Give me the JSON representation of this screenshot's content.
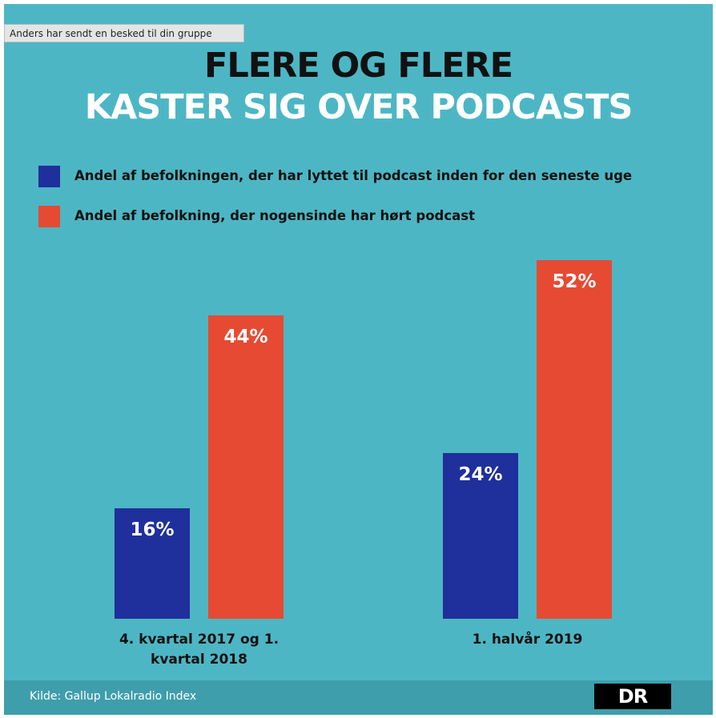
{
  "notification": "Anders har sendt en besked til din gruppe",
  "chart_data": {
    "type": "bar",
    "title": "FLERE OG FLERE",
    "subtitle": "KASTER SIG OVER PODCASTS",
    "categories": [
      "4. kvartal 2017 og 1. kvartal 2018",
      "1. halvår 2019"
    ],
    "series": [
      {
        "name": "Andel af befolkningen, der har lyttet til podcast inden for den seneste uge",
        "color": "#1f2f9c",
        "values": [
          16,
          24
        ],
        "value_labels": [
          "16%",
          "24%"
        ]
      },
      {
        "name": "Andel af befolkning, der nogensinde har hørt podcast",
        "color": "#e64a33",
        "values": [
          44,
          52
        ],
        "value_labels": [
          "44%",
          "52%"
        ]
      }
    ],
    "source": "Kilde: Gallup Lokalradio Index",
    "logo": "DR"
  }
}
